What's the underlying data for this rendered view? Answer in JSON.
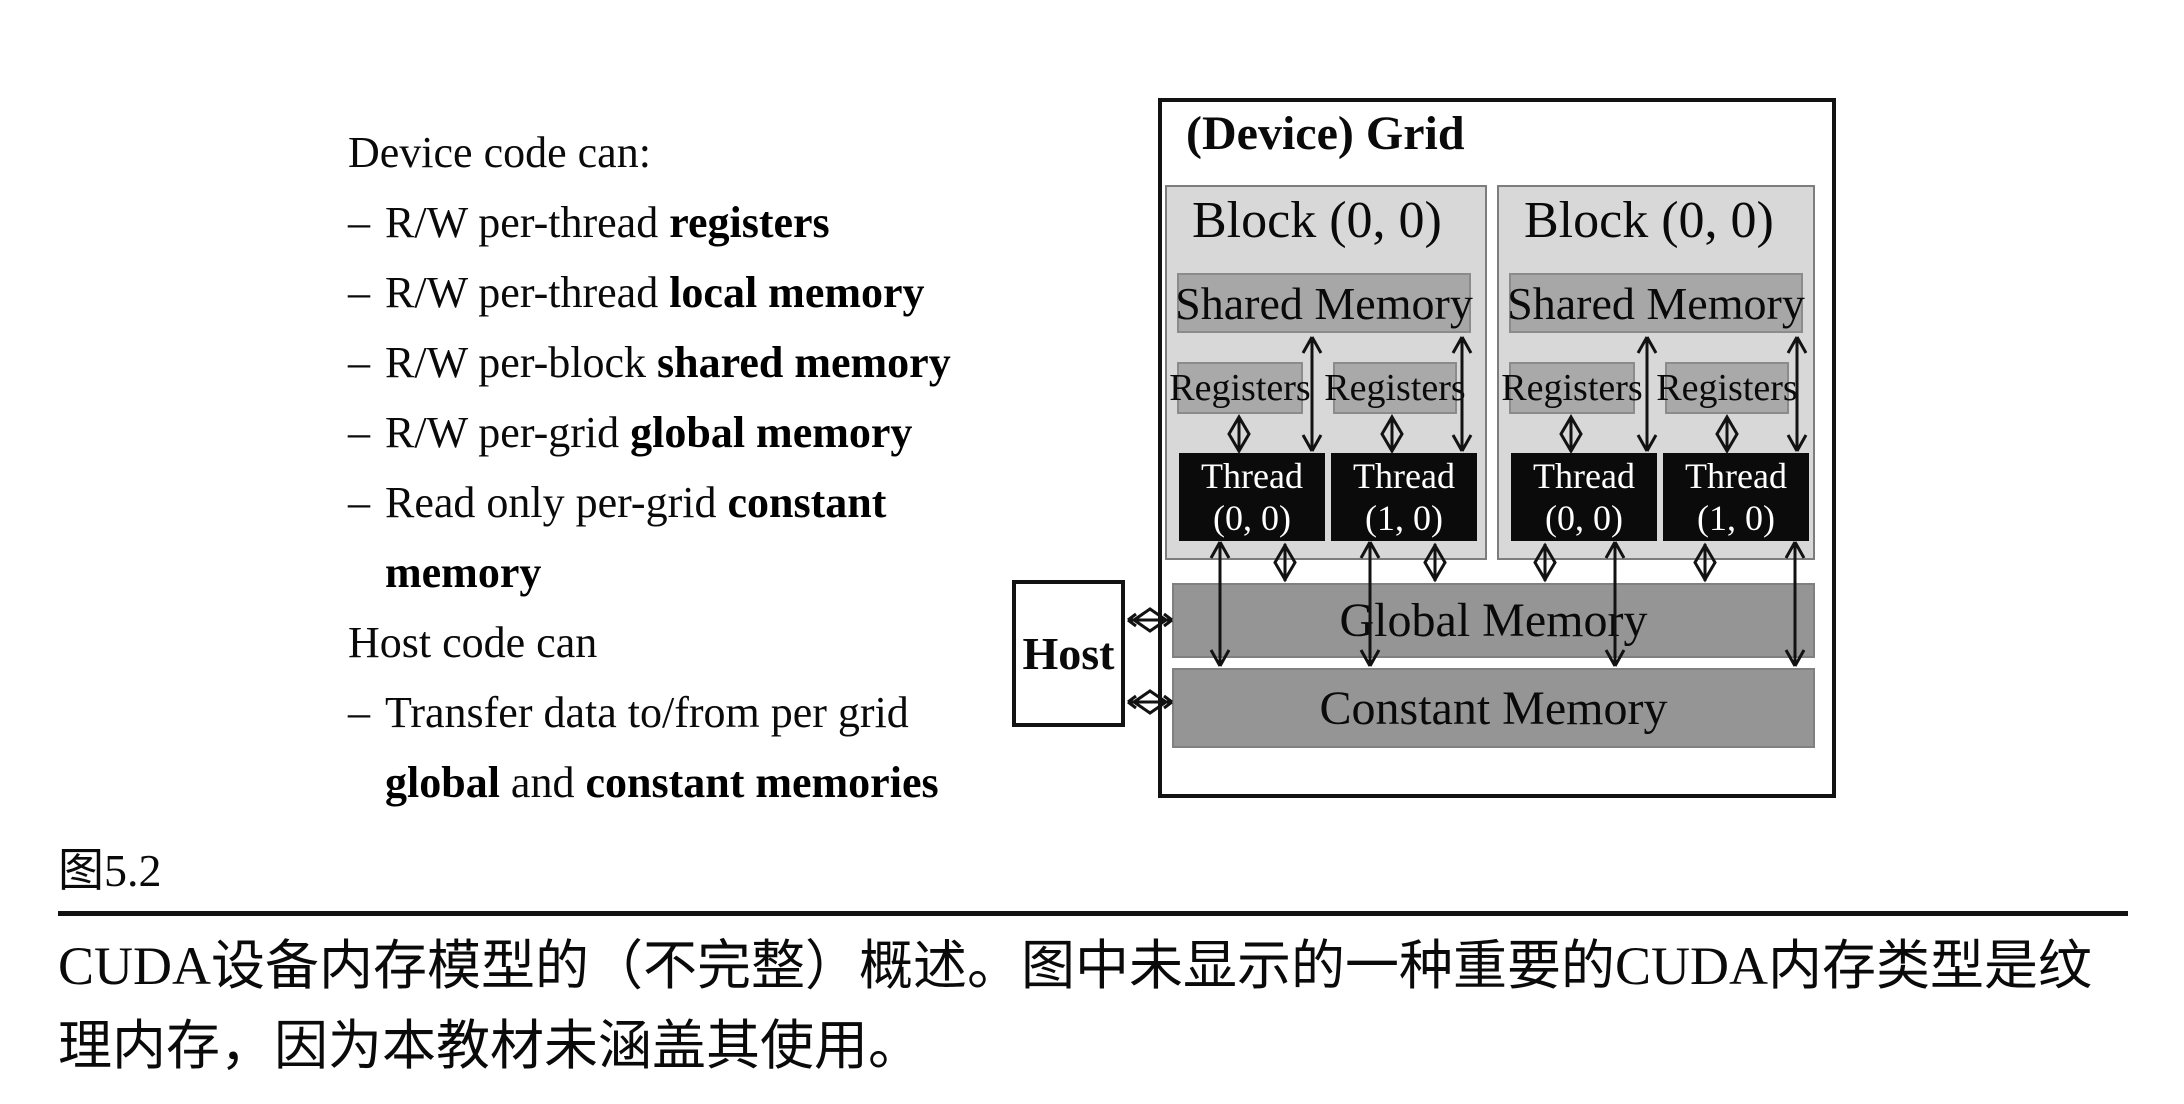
{
  "left_panel": {
    "dash": "–",
    "header1": "Device code can:",
    "bullets": [
      {
        "normal": "R/W per-thread ",
        "bold": "registers"
      },
      {
        "normal": "R/W per-thread ",
        "bold": "local memory"
      },
      {
        "normal": "R/W per-block ",
        "bold": "shared memory"
      },
      {
        "normal": "R/W per-grid ",
        "bold": "global memory"
      },
      {
        "normal": "Read only per-grid ",
        "bold": "constant",
        "bold_wrap": "memory"
      }
    ],
    "header2": "Host code can",
    "transfer_bullet": {
      "normal": "Transfer data to/from per grid",
      "bold1": "global",
      "mid": " and ",
      "bold2": "constant memories"
    }
  },
  "diagram": {
    "title": "(Device) Grid",
    "host_label": "Host",
    "global_memory": "Global Memory",
    "constant_memory": "Constant Memory",
    "blocks": [
      {
        "label": "Block (0, 0)",
        "shared": "Shared Memory",
        "registers": [
          "Registers",
          "Registers"
        ],
        "threads": [
          {
            "name": "Thread",
            "index": "(0, 0)"
          },
          {
            "name": "Thread",
            "index": "(1, 0)"
          }
        ]
      },
      {
        "label": "Block (0, 0)",
        "shared": "Shared Memory",
        "registers": [
          "Registers",
          "Registers"
        ],
        "threads": [
          {
            "name": "Thread",
            "index": "(0, 0)"
          },
          {
            "name": "Thread",
            "index": "(1, 0)"
          }
        ]
      }
    ]
  },
  "caption": {
    "figure_label": "图5.2",
    "line1": "CUDA设备内存模型的（不完整）概述。图中未显示的一种重要的CUDA内存类型是纹",
    "line2": "理内存，因为本教材未涵盖其使用。"
  },
  "colors": {
    "block_bg": "#d8d8d8",
    "bar_bg": "#a7a7a7",
    "memory_bar_bg": "#959595",
    "thread_bg": "#0b0b0b",
    "line_color": "#121212"
  }
}
